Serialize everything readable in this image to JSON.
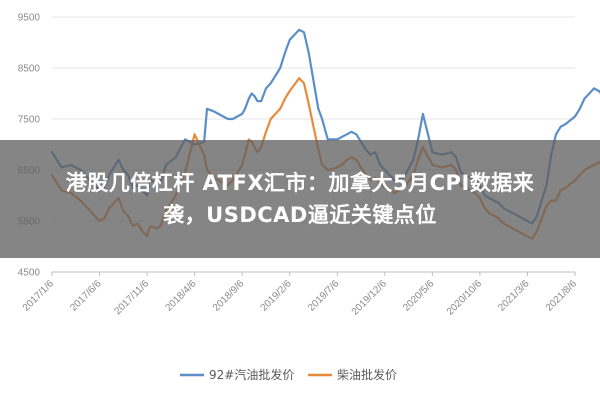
{
  "overlay": {
    "line1": "港股几倍杠杆 ATFX汇市：加拿大5月CPI数据来",
    "line2": "袭，USDCAD逼近关键点位"
  },
  "chart_data": {
    "type": "line",
    "title": "",
    "xlabel": "",
    "ylabel": "",
    "ylim": [
      4500,
      9500
    ],
    "yticks": [
      4500,
      5500,
      6500,
      7500,
      8500,
      9500
    ],
    "ytick_labels": [
      "4500",
      "5500",
      "6500",
      "7500",
      "8500",
      "9500"
    ],
    "xtick_labels": [
      "2017/1/6",
      "2017/6/6",
      "2017/11/6",
      "2018/4/6",
      "2018/9/6",
      "2019/2/6",
      "2019/7/6",
      "2019/12/6",
      "2020/5/6",
      "2020/10/6",
      "2021/3/6",
      "2021/8/6"
    ],
    "grid": "horizontal",
    "legend": "bottom",
    "series": [
      {
        "name": "92#汽油批发价",
        "color": "#5b8ec9",
        "x": [
          0.0,
          1.0,
          2.0,
          3.0,
          4.0,
          5.0,
          5.5,
          6.0,
          7.0,
          7.5,
          8.0,
          8.5,
          9.0,
          9.5,
          10.0,
          10.2,
          10.5,
          11.0,
          11.4,
          12.0,
          13.0,
          14.0,
          15.0,
          16.0,
          16.3,
          17.0,
          17.5,
          18.0,
          18.5,
          19.0,
          20.0,
          20.3,
          20.7,
          21.0,
          21.3,
          21.6,
          22.0,
          22.5,
          23.0,
          24.0,
          24.5,
          25.0,
          26.0,
          26.5,
          27.0,
          28.0,
          28.4,
          29.0,
          30.0,
          30.5,
          31.0,
          31.5,
          32.0,
          32.5,
          33.0,
          33.5,
          34.0,
          34.5,
          35.0,
          35.5,
          36.0,
          37.0,
          38.0,
          38.5,
          39.0,
          40.0,
          41.0,
          42.0,
          42.5,
          43.0,
          43.5,
          44.0,
          44.5,
          45.0,
          45.5,
          46.0,
          46.5,
          47.0,
          47.5,
          48.0,
          48.5,
          49.0,
          49.5,
          50.0,
          50.5,
          51.0,
          51.5,
          52.0,
          52.5,
          53.0,
          53.5,
          54.0,
          55.0,
          55.5,
          56.0,
          56.5,
          57.0,
          57.5,
          58.0,
          58.3
        ],
        "y": [
          6850,
          6550,
          6600,
          6500,
          6300,
          6100,
          6150,
          6400,
          6700,
          6500,
          6400,
          6150,
          6200,
          6100,
          6000,
          6250,
          6300,
          6200,
          6250,
          6600,
          6750,
          7100,
          7000,
          7050,
          7700,
          7650,
          7600,
          7550,
          7500,
          7500,
          7600,
          7700,
          7900,
          8000,
          7950,
          7850,
          7850,
          8100,
          8200,
          8500,
          8800,
          9050,
          9250,
          9200,
          8800,
          7700,
          7500,
          7100,
          7100,
          7150,
          7200,
          7250,
          7200,
          7050,
          6900,
          6800,
          6850,
          6600,
          6500,
          6400,
          6300,
          6350,
          6700,
          7100,
          7600,
          6850,
          6800,
          6850,
          6750,
          6450,
          6400,
          6350,
          6300,
          6200,
          6000,
          5950,
          5900,
          5850,
          5750,
          5700,
          5650,
          5600,
          5550,
          5500,
          5450,
          5600,
          5900,
          6200,
          6800,
          7200,
          7350,
          7400,
          7550,
          7700,
          7900,
          8000,
          8100,
          8050,
          7950,
          7800
        ]
      },
      {
        "name": "柴油批发价",
        "color": "#e88a3c",
        "x": [
          0.0,
          1.0,
          2.0,
          3.0,
          4.0,
          5.0,
          5.5,
          6.0,
          7.0,
          7.5,
          8.0,
          8.5,
          9.0,
          9.5,
          10.0,
          10.2,
          10.5,
          11.0,
          11.4,
          12.0,
          13.0,
          14.0,
          15.0,
          16.0,
          16.3,
          17.0,
          17.5,
          18.0,
          18.5,
          19.0,
          20.0,
          20.3,
          20.7,
          21.0,
          21.3,
          21.6,
          22.0,
          22.5,
          23.0,
          24.0,
          24.5,
          25.0,
          26.0,
          26.5,
          27.0,
          28.0,
          28.4,
          29.0,
          30.0,
          30.5,
          31.0,
          31.5,
          32.0,
          32.5,
          33.0,
          33.5,
          34.0,
          34.5,
          35.0,
          35.5,
          36.0,
          37.0,
          38.0,
          38.5,
          39.0,
          40.0,
          41.0,
          42.0,
          42.5,
          43.0,
          43.5,
          44.0,
          44.5,
          45.0,
          45.5,
          46.0,
          46.5,
          47.0,
          47.5,
          48.0,
          48.5,
          49.0,
          49.5,
          50.0,
          50.5,
          51.0,
          51.5,
          52.0,
          52.5,
          53.0,
          53.5,
          54.0,
          55.0,
          55.5,
          56.0,
          56.5,
          57.0,
          57.5,
          58.0,
          58.3
        ],
        "y": [
          6400,
          6100,
          6050,
          5900,
          5700,
          5500,
          5550,
          5750,
          5950,
          5700,
          5600,
          5400,
          5450,
          5300,
          5200,
          5350,
          5400,
          5350,
          5400,
          5700,
          6000,
          6450,
          7200,
          6800,
          6500,
          6350,
          6300,
          6250,
          6200,
          6300,
          6600,
          6800,
          7100,
          7050,
          6950,
          6850,
          6950,
          7250,
          7500,
          7700,
          7900,
          8050,
          8300,
          8200,
          7800,
          6900,
          6600,
          6500,
          6550,
          6600,
          6700,
          6750,
          6700,
          6550,
          6400,
          6300,
          6350,
          6250,
          6150,
          6100,
          6050,
          6150,
          6400,
          6700,
          6950,
          6600,
          6550,
          6600,
          6500,
          6200,
          6150,
          6100,
          6050,
          5950,
          5750,
          5650,
          5600,
          5550,
          5450,
          5400,
          5350,
          5300,
          5250,
          5200,
          5150,
          5300,
          5550,
          5800,
          5900,
          5900,
          6100,
          6150,
          6300,
          6400,
          6500,
          6550,
          6600,
          6650,
          6600,
          6500
        ]
      }
    ]
  }
}
